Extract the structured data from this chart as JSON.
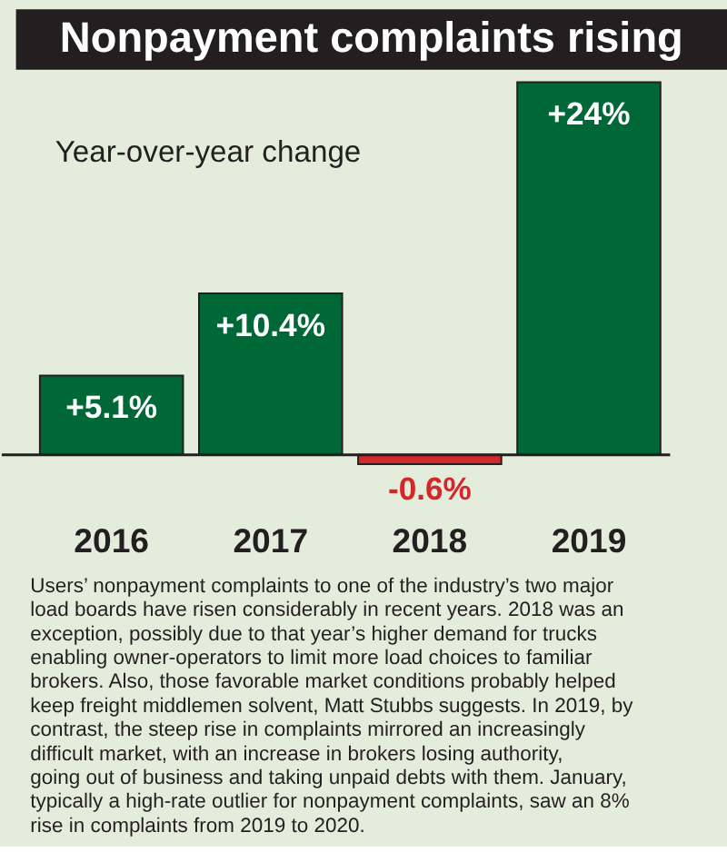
{
  "chart_data": {
    "type": "bar",
    "title": "Nonpayment complaints rising",
    "subtitle": "Year-over-year change",
    "categories": [
      "2016",
      "2017",
      "2018",
      "2019"
    ],
    "values": [
      5.1,
      10.4,
      -0.6,
      24
    ],
    "colors": [
      "#006837",
      "#006837",
      "#d7262a",
      "#006837"
    ],
    "value_labels": [
      "+5.1%",
      "+10.4%",
      "-0.6%",
      "+24%"
    ],
    "annotations": [
      "Users’ nonpayment complaints to one of the industry’s two major load boards have risen considerably in recent years. 2018 was an exception, possibly due to that year’s higher demand for trucks enabling owner-operators to limit more load choices to familiar brokers. Also, those favorable market conditions probably helped keep freight middlemen solvent, Matt Stubbs suggests. In 2019, by contrast, the steep rise in complaints mirrored an increasingly difficult market, with an increase in brokers losing authority, going out of business and taking unpaid debts with them. January, typically a high-rate outlier for nonpayment complaints, saw an 8% rise in complaints from 2019 to 2020."
    ],
    "grid": false
  }
}
